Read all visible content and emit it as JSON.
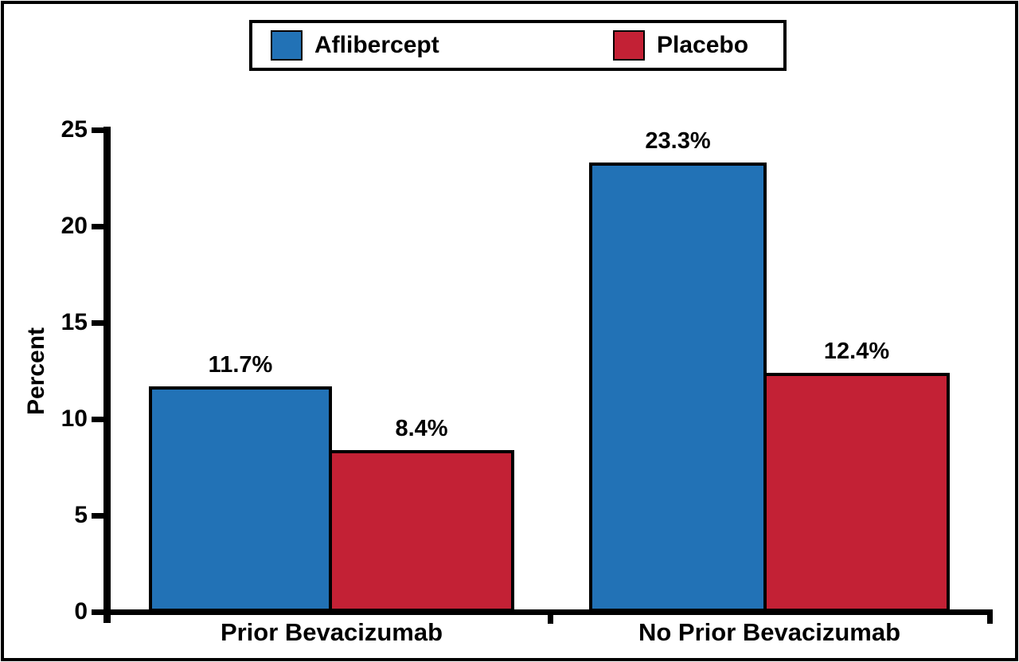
{
  "chart_data": {
    "type": "bar",
    "title": "",
    "xlabel": "",
    "ylabel": "Percent",
    "ylim": [
      0,
      25
    ],
    "yticks": [
      0,
      5,
      10,
      15,
      20,
      25
    ],
    "grid": false,
    "legend_position": "top-center",
    "categories": [
      "Prior Bevacizumab",
      "No Prior Bevacizumab"
    ],
    "series": [
      {
        "name": "Aflibercept",
        "color": "#2272B6",
        "values": [
          11.7,
          23.3
        ],
        "labels": [
          "11.7%",
          "23.3%"
        ]
      },
      {
        "name": "Placebo",
        "color": "#C32135",
        "values": [
          8.4,
          12.4
        ],
        "labels": [
          "8.4%",
          "12.4%"
        ]
      }
    ],
    "colors": {
      "axis": "#000000",
      "text": "#000000",
      "background": "#FFFFFF"
    }
  }
}
